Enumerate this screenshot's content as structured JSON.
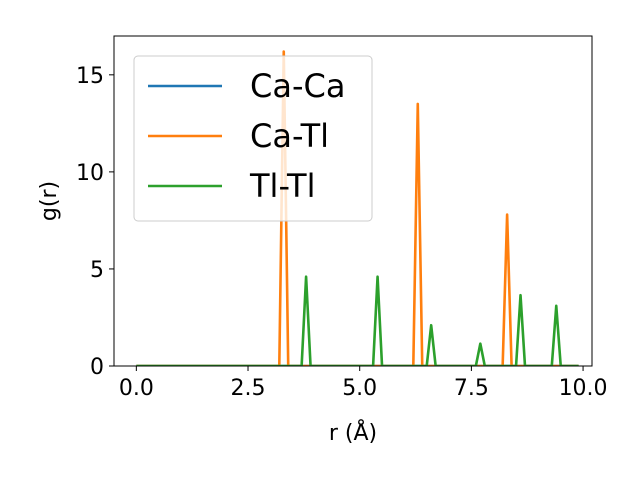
{
  "chart_data": {
    "type": "line",
    "xlabel": "r (Å)",
    "ylabel": "g(r)",
    "xlim": [
      -0.5,
      10.2
    ],
    "ylim": [
      0,
      17
    ],
    "xticks": [
      0.0,
      2.5,
      5.0,
      7.5,
      10.0
    ],
    "xtick_labels": [
      "0.0",
      "2.5",
      "5.0",
      "7.5",
      "10.0"
    ],
    "yticks": [
      0,
      5,
      10,
      15
    ],
    "ytick_labels": [
      "0",
      "5",
      "10",
      "15"
    ],
    "grid": false,
    "legend_position": "top-left",
    "series": [
      {
        "name": "Ca-Ca",
        "color": "#1f77b4",
        "x": [
          0.0,
          9.9
        ],
        "y": [
          0,
          0
        ]
      },
      {
        "name": "Ca-Tl",
        "color": "#ff7f0e",
        "x": [
          0.0,
          3.2,
          3.3,
          3.4,
          6.2,
          6.3,
          6.4,
          8.2,
          8.3,
          8.4,
          9.9
        ],
        "y": [
          0,
          0,
          16.2,
          0,
          0,
          13.5,
          0,
          0,
          7.8,
          0,
          0
        ]
      },
      {
        "name": "Tl-Tl",
        "color": "#2ca02c",
        "x": [
          0.0,
          3.7,
          3.8,
          3.9,
          5.3,
          5.4,
          5.5,
          6.5,
          6.6,
          6.7,
          7.6,
          7.7,
          7.8,
          8.5,
          8.6,
          8.7,
          9.3,
          9.4,
          9.5,
          9.9
        ],
        "y": [
          0,
          0,
          4.6,
          0,
          0,
          4.6,
          0,
          0,
          2.1,
          0,
          0,
          1.15,
          0,
          0,
          3.65,
          0,
          0,
          3.1,
          0,
          0
        ]
      }
    ]
  }
}
